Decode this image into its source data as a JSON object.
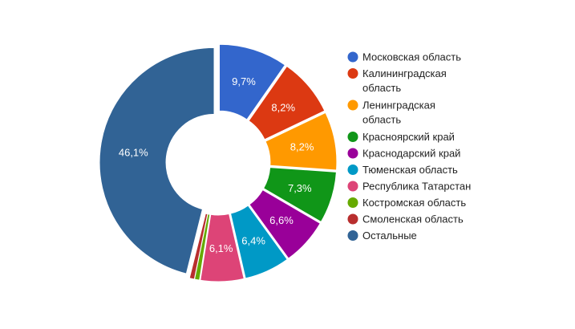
{
  "chart_data": {
    "type": "pie",
    "donut": true,
    "legend_position": "right",
    "slices": [
      {
        "label": "Московская область",
        "legend_lines": [
          "Московская область"
        ],
        "value": 9.7,
        "display": "9,7%",
        "color": "#3366cc"
      },
      {
        "label": "Калининградская область",
        "legend_lines": [
          "Калининградская",
          "область"
        ],
        "value": 8.2,
        "display": "8,2%",
        "color": "#dc3912"
      },
      {
        "label": "Ленинградская область",
        "legend_lines": [
          "Ленинградская",
          "область"
        ],
        "value": 8.2,
        "display": "8,2%",
        "color": "#ff9900"
      },
      {
        "label": "Красноярский край",
        "legend_lines": [
          "Красноярский край"
        ],
        "value": 7.3,
        "display": "7,3%",
        "color": "#109618"
      },
      {
        "label": "Краснодарский край",
        "legend_lines": [
          "Краснодарский край"
        ],
        "value": 6.6,
        "display": "6,6%",
        "color": "#990099"
      },
      {
        "label": "Тюменская область",
        "legend_lines": [
          "Тюменская область"
        ],
        "value": 6.4,
        "display": "6,4%",
        "color": "#0099c6"
      },
      {
        "label": "Республика Татарстан",
        "legend_lines": [
          "Республика Татарстан"
        ],
        "value": 6.1,
        "display": "6,1%",
        "color": "#dd4477"
      },
      {
        "label": "Костромская область",
        "legend_lines": [
          "Костромская область"
        ],
        "value": 0.7,
        "display": "",
        "color": "#66aa00"
      },
      {
        "label": "Смоленская область",
        "legend_lines": [
          "Смоленская область"
        ],
        "value": 0.7,
        "display": "",
        "color": "#b82e2e"
      },
      {
        "label": "Остальные",
        "legend_lines": [
          "Остальные"
        ],
        "value": 46.1,
        "display": "46,1%",
        "color": "#316395"
      }
    ]
  }
}
